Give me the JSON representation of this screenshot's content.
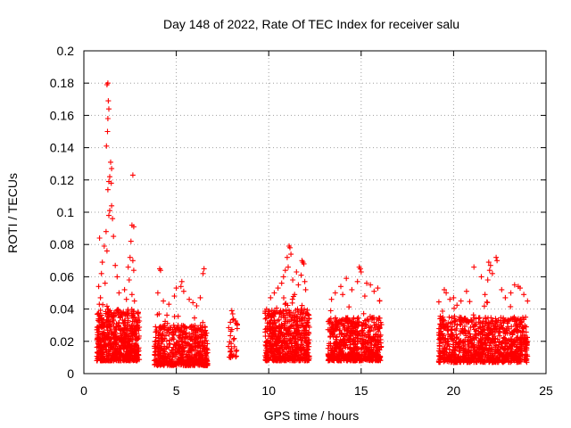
{
  "chart_data": {
    "type": "scatter",
    "title": "Day 148 of 2022, Rate Of TEC Index for receiver salu",
    "xlabel": "GPS time / hours",
    "ylabel": "ROTI / TECUs",
    "xlim": [
      0,
      25
    ],
    "ylim": [
      0,
      0.2
    ],
    "xticks": [
      0,
      5,
      10,
      15,
      20,
      25
    ],
    "yticks": [
      0,
      0.02,
      0.04,
      0.06,
      0.08,
      0.1,
      0.12,
      0.14,
      0.16,
      0.18,
      0.2
    ],
    "xtick_labels": [
      "0",
      "5",
      "10",
      "15",
      "20",
      "25"
    ],
    "ytick_labels": [
      "0",
      "0.02",
      "0.04",
      "0.06",
      "0.08",
      "0.1",
      "0.12",
      "0.14",
      "0.16",
      "0.18",
      "0.2"
    ],
    "grid": true,
    "marker": "+",
    "color": "#ff0000",
    "series": [
      {
        "name": "ROTI",
        "description": "dense clusters of samples; baseline ~0.01-0.04 TECU/s",
        "clusters": [
          {
            "x_range": [
              0.7,
              3.0
            ],
            "base_range": [
              0.008,
              0.04
            ],
            "n": 650,
            "spikes": [
              [
                1.3,
                0.18
              ],
              [
                1.25,
                0.179
              ],
              [
                1.32,
                0.169
              ],
              [
                1.35,
                0.164
              ],
              [
                1.3,
                0.158
              ],
              [
                1.28,
                0.15
              ],
              [
                1.22,
                0.141
              ],
              [
                1.45,
                0.131
              ],
              [
                1.5,
                0.127
              ],
              [
                1.4,
                0.122
              ],
              [
                1.35,
                0.119
              ],
              [
                1.48,
                0.118
              ],
              [
                1.3,
                0.114
              ],
              [
                2.65,
                0.123
              ],
              [
                1.5,
                0.104
              ],
              [
                1.4,
                0.101
              ],
              [
                1.35,
                0.098
              ],
              [
                1.55,
                0.096
              ],
              [
                2.6,
                0.092
              ],
              [
                2.7,
                0.091
              ],
              [
                1.2,
                0.088
              ],
              [
                1.6,
                0.085
              ],
              [
                2.55,
                0.082
              ],
              [
                0.85,
                0.084
              ],
              [
                1.1,
                0.079
              ],
              [
                1.25,
                0.076
              ],
              [
                2.5,
                0.072
              ],
              [
                2.65,
                0.07
              ],
              [
                1.0,
                0.069
              ],
              [
                1.7,
                0.067
              ],
              [
                2.4,
                0.066
              ],
              [
                2.7,
                0.064
              ],
              [
                0.95,
                0.062
              ],
              [
                1.8,
                0.06
              ],
              [
                2.45,
                0.058
              ],
              [
                1.15,
                0.056
              ],
              [
                0.8,
                0.054
              ],
              [
                2.2,
                0.052
              ],
              [
                1.9,
                0.05
              ],
              [
                2.6,
                0.049
              ],
              [
                0.9,
                0.047
              ],
              [
                2.3,
                0.046
              ]
            ]
          },
          {
            "x_range": [
              3.8,
              6.7
            ],
            "base_range": [
              0.005,
              0.03
            ],
            "n": 560,
            "spikes": [
              [
                4.1,
                0.065
              ],
              [
                4.15,
                0.064
              ],
              [
                6.5,
                0.065
              ],
              [
                6.45,
                0.062
              ],
              [
                5.3,
                0.057
              ],
              [
                5.25,
                0.054
              ],
              [
                5.0,
                0.053
              ],
              [
                5.4,
                0.051
              ],
              [
                4.0,
                0.05
              ],
              [
                4.9,
                0.048
              ],
              [
                6.3,
                0.047
              ],
              [
                5.7,
                0.046
              ],
              [
                4.3,
                0.045
              ],
              [
                5.9,
                0.044
              ],
              [
                4.6,
                0.043
              ],
              [
                6.1,
                0.042
              ]
            ]
          },
          {
            "x_range": [
              7.8,
              8.3
            ],
            "base_range": [
              0.01,
              0.035
            ],
            "n": 35,
            "spikes": [
              [
                8.0,
                0.039
              ],
              [
                8.05,
                0.037
              ],
              [
                7.95,
                0.01
              ]
            ]
          },
          {
            "x_range": [
              9.8,
              12.2
            ],
            "base_range": [
              0.008,
              0.04
            ],
            "n": 620,
            "spikes": [
              [
                11.1,
                0.079
              ],
              [
                11.15,
                0.078
              ],
              [
                11.2,
                0.074
              ],
              [
                11.0,
                0.072
              ],
              [
                11.8,
                0.07
              ],
              [
                11.85,
                0.069
              ],
              [
                11.9,
                0.068
              ],
              [
                11.05,
                0.066
              ],
              [
                10.9,
                0.064
              ],
              [
                11.5,
                0.063
              ],
              [
                11.75,
                0.061
              ],
              [
                10.8,
                0.06
              ],
              [
                11.3,
                0.058
              ],
              [
                11.95,
                0.057
              ],
              [
                10.7,
                0.056
              ],
              [
                11.6,
                0.055
              ],
              [
                10.5,
                0.053
              ],
              [
                12.0,
                0.052
              ],
              [
                10.3,
                0.05
              ],
              [
                11.4,
                0.049
              ],
              [
                10.1,
                0.047
              ]
            ]
          },
          {
            "x_range": [
              13.2,
              16.1
            ],
            "base_range": [
              0.008,
              0.035
            ],
            "n": 640,
            "spikes": [
              [
                14.9,
                0.066
              ],
              [
                14.95,
                0.065
              ],
              [
                15.0,
                0.063
              ],
              [
                14.2,
                0.059
              ],
              [
                14.8,
                0.057
              ],
              [
                15.3,
                0.056
              ],
              [
                15.5,
                0.055
              ],
              [
                13.9,
                0.054
              ],
              [
                15.9,
                0.053
              ],
              [
                14.5,
                0.052
              ],
              [
                15.7,
                0.051
              ],
              [
                13.6,
                0.05
              ],
              [
                14.0,
                0.049
              ],
              [
                15.2,
                0.048
              ],
              [
                13.4,
                0.046
              ],
              [
                16.0,
                0.045
              ]
            ]
          },
          {
            "x_range": [
              19.2,
              24.0
            ],
            "base_range": [
              0.007,
              0.035
            ],
            "n": 980,
            "spikes": [
              [
                21.1,
                0.066
              ],
              [
                22.3,
                0.072
              ],
              [
                22.35,
                0.07
              ],
              [
                21.9,
                0.069
              ],
              [
                22.0,
                0.067
              ],
              [
                21.95,
                0.064
              ],
              [
                22.1,
                0.062
              ],
              [
                21.5,
                0.06
              ],
              [
                21.85,
                0.058
              ],
              [
                23.3,
                0.055
              ],
              [
                23.5,
                0.054
              ],
              [
                23.6,
                0.053
              ],
              [
                22.6,
                0.052
              ],
              [
                19.5,
                0.052
              ],
              [
                19.6,
                0.05
              ],
              [
                20.7,
                0.051
              ],
              [
                21.7,
                0.049
              ],
              [
                23.1,
                0.05
              ],
              [
                23.8,
                0.049
              ],
              [
                20.0,
                0.047
              ],
              [
                22.8,
                0.047
              ],
              [
                19.8,
                0.046
              ],
              [
                20.4,
                0.045
              ],
              [
                24.0,
                0.045
              ]
            ]
          }
        ]
      }
    ]
  }
}
